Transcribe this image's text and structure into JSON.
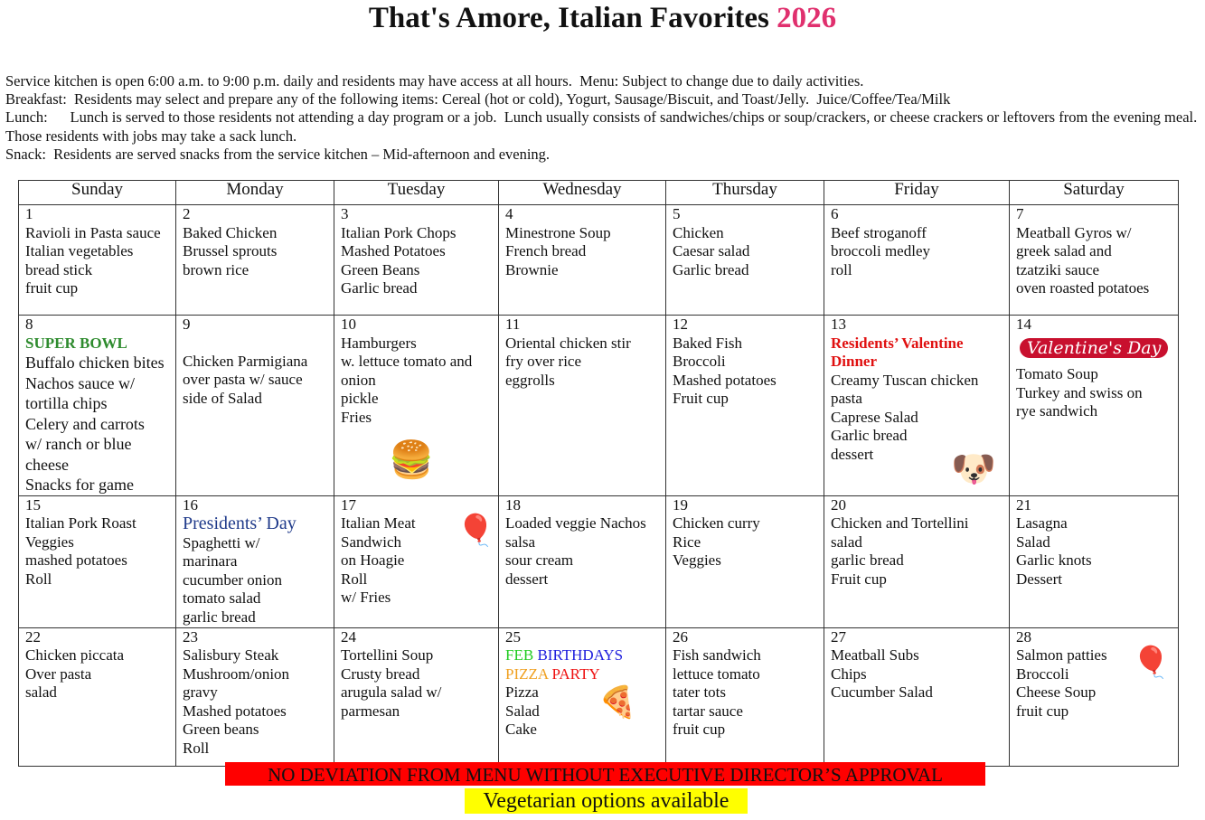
{
  "title": {
    "text": "That's Amore, Italian Favorites",
    "year": "2026",
    "year_color": "#e0306e"
  },
  "intro": [
    "Service kitchen is open 6:00 a.m. to 9:00 p.m. daily and residents may have access at all hours.  Menu: Subject to change due to daily activities.",
    "Breakfast:  Residents may select and prepare any of the following items: Cereal (hot or cold), Yogurt, Sausage/Biscuit, and Toast/Jelly.  Juice/Coffee/Tea/Milk",
    "Lunch:      Lunch is served to those residents not attending a day program or a job.  Lunch usually consists of sandwiches/chips or soup/crackers, or cheese crackers or leftovers from the evening meal.",
    "Those residents with jobs may take a sack lunch.",
    "Snack:  Residents are served snacks from the service kitchen – Mid-afternoon and evening."
  ],
  "weekdays": [
    "Sunday",
    "Monday",
    "Tuesday",
    "Wednesday",
    "Thursday",
    "Friday",
    "Saturday"
  ],
  "weeks": [
    [
      {
        "date": "1",
        "items": [
          "Ravioli in Pasta sauce",
          "Italian vegetables",
          "bread stick",
          "fruit cup"
        ]
      },
      {
        "date": "2",
        "items": [
          "Baked Chicken",
          "Brussel sprouts",
          "brown rice"
        ]
      },
      {
        "date": "3",
        "items": [
          "Italian Pork Chops",
          "Mashed Potatoes",
          "Green Beans",
          "Garlic bread"
        ]
      },
      {
        "date": "4",
        "items": [
          "Minestrone Soup",
          "French bread",
          "Brownie"
        ]
      },
      {
        "date": "5",
        "items": [
          "Chicken",
          "Caesar salad",
          "Garlic bread"
        ]
      },
      {
        "date": "6",
        "items": [
          "Beef stroganoff",
          "broccoli medley",
          "roll"
        ]
      },
      {
        "date": "7",
        "items": [
          "Meatball Gyros  w/",
          "greek salad and",
          "tzatziki sauce",
          "oven roasted potatoes"
        ]
      }
    ],
    [
      {
        "date": "8",
        "special": [
          {
            "text": "SUPER BOWL",
            "color": "#2e8b2e",
            "bold": true
          }
        ],
        "items": [
          "Buffalo chicken bites",
          "Nachos sauce w/",
          "tortilla chips",
          "Celery and carrots",
          "w/ ranch or blue",
          "cheese",
          "Snacks for game"
        ]
      },
      {
        "date": "9",
        "items": [
          "",
          "Chicken Parmigiana",
          " over pasta w/ sauce",
          "side of Salad"
        ]
      },
      {
        "date": "10",
        "items": [
          "Hamburgers",
          "w. lettuce tomato and",
          "onion",
          "pickle",
          "Fries"
        ],
        "icon": "hamburger-icon"
      },
      {
        "date": "11",
        "items": [
          "Oriental chicken stir",
          "fry over rice",
          "eggrolls"
        ]
      },
      {
        "date": "12",
        "items": [
          "Baked Fish",
          "Broccoli",
          "Mashed potatoes",
          "Fruit cup"
        ]
      },
      {
        "date": "13",
        "special": [
          {
            "text": "Residents’ Valentine Dinner",
            "color": "#e01010",
            "bold": true
          }
        ],
        "items": [
          "Creamy Tuscan chicken",
          "pasta",
          "Caprese Salad",
          "Garlic bread",
          "dessert"
        ],
        "icon": "snoopy-heart-icon"
      },
      {
        "date": "14",
        "badge": "Valentine's Day",
        "items": [
          "Tomato Soup",
          "Turkey and swiss on",
          "rye sandwich"
        ]
      }
    ],
    [
      {
        "date": "15",
        "items": [
          "Italian Pork Roast",
          "Veggies",
          "mashed potatoes",
          "Roll"
        ]
      },
      {
        "date": "16",
        "special": [
          {
            "text": "Presidents’ Day",
            "color": "#1f3a8a",
            "bold": false
          }
        ],
        "items": [
          "Spaghetti w/",
          "marinara",
          "cucumber onion",
          "tomato salad",
          "garlic bread"
        ]
      },
      {
        "date": "17",
        "items": [
          "Italian Meat",
          "Sandwich",
          "on Hoagie",
          "Roll",
          "w/ Fries"
        ],
        "icon": "balloons-icon"
      },
      {
        "date": "18",
        "items": [
          "Loaded veggie Nachos",
          "salsa",
          "sour cream",
          "dessert"
        ]
      },
      {
        "date": "19",
        "items": [
          "Chicken curry",
          "Rice",
          "Veggies"
        ]
      },
      {
        "date": "20",
        "items": [
          "Chicken and Tortellini",
          "salad",
          "garlic bread",
          "Fruit cup"
        ]
      },
      {
        "date": "21",
        "items": [
          "Lasagna",
          "Salad",
          "Garlic knots",
          "Dessert"
        ]
      }
    ],
    [
      {
        "date": "22",
        "items": [
          "Chicken piccata",
          "Over pasta",
          "salad"
        ]
      },
      {
        "date": "23",
        "items": [
          "Salisbury Steak",
          "Mushroom/onion",
          "gravy",
          "Mashed potatoes",
          "Green beans",
          "Roll"
        ]
      },
      {
        "date": "24",
        "items": [
          "Tortellini Soup",
          "Crusty bread",
          "arugula salad w/",
          "parmesan"
        ]
      },
      {
        "date": "25",
        "special": [
          {
            "parts": [
              {
                "text": "FEB ",
                "color": "#22cc22"
              },
              {
                "text": "BIRTHDAYS",
                "color": "#2020dd"
              }
            ]
          },
          {
            "parts": [
              {
                "text": "PIZZA ",
                "color": "#f0a020"
              },
              {
                "text": "PARTY",
                "color": "#ee1111"
              }
            ]
          }
        ],
        "items": [
          "Pizza",
          "Salad",
          "Cake"
        ],
        "icon": "pizza-icon"
      },
      {
        "date": "26",
        "items": [
          "Fish sandwich",
          "lettuce tomato",
          "tater tots",
          "tartar sauce",
          "fruit cup"
        ]
      },
      {
        "date": "27",
        "items": [
          "Meatball Subs",
          "Chips",
          "Cucumber Salad"
        ]
      },
      {
        "date": "28",
        "items": [
          "Salmon patties",
          "Broccoli",
          "Cheese Soup",
          "fruit cup"
        ],
        "icon": "balloons-icon"
      }
    ]
  ],
  "footer": {
    "banner": "NO DEVIATION FROM MENU WITHOUT EXECUTIVE DIRECTOR’S APPROVAL",
    "banner_color": "#ff0000",
    "veg": "Vegetarian options available",
    "veg_color": "#ffff00"
  }
}
